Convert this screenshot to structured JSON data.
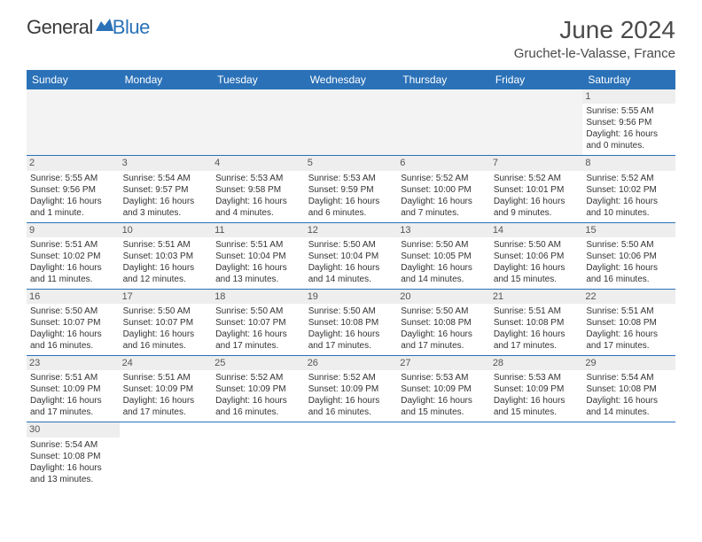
{
  "brand": {
    "part1": "General",
    "part2": "Blue"
  },
  "title": "June 2024",
  "location": "Gruchet-le-Valasse, France",
  "colors": {
    "accent": "#2a71b8",
    "text": "#333333",
    "header_bg": "#2a71b8",
    "header_fg": "#ffffff",
    "daynum_bg": "#eeeeee"
  },
  "dayNames": [
    "Sunday",
    "Monday",
    "Tuesday",
    "Wednesday",
    "Thursday",
    "Friday",
    "Saturday"
  ],
  "startOffset": 6,
  "days": [
    {
      "n": 1,
      "sr": "5:55 AM",
      "ss": "9:56 PM",
      "dl": "16 hours and 0 minutes."
    },
    {
      "n": 2,
      "sr": "5:55 AM",
      "ss": "9:56 PM",
      "dl": "16 hours and 1 minute."
    },
    {
      "n": 3,
      "sr": "5:54 AM",
      "ss": "9:57 PM",
      "dl": "16 hours and 3 minutes."
    },
    {
      "n": 4,
      "sr": "5:53 AM",
      "ss": "9:58 PM",
      "dl": "16 hours and 4 minutes."
    },
    {
      "n": 5,
      "sr": "5:53 AM",
      "ss": "9:59 PM",
      "dl": "16 hours and 6 minutes."
    },
    {
      "n": 6,
      "sr": "5:52 AM",
      "ss": "10:00 PM",
      "dl": "16 hours and 7 minutes."
    },
    {
      "n": 7,
      "sr": "5:52 AM",
      "ss": "10:01 PM",
      "dl": "16 hours and 9 minutes."
    },
    {
      "n": 8,
      "sr": "5:52 AM",
      "ss": "10:02 PM",
      "dl": "16 hours and 10 minutes."
    },
    {
      "n": 9,
      "sr": "5:51 AM",
      "ss": "10:02 PM",
      "dl": "16 hours and 11 minutes."
    },
    {
      "n": 10,
      "sr": "5:51 AM",
      "ss": "10:03 PM",
      "dl": "16 hours and 12 minutes."
    },
    {
      "n": 11,
      "sr": "5:51 AM",
      "ss": "10:04 PM",
      "dl": "16 hours and 13 minutes."
    },
    {
      "n": 12,
      "sr": "5:50 AM",
      "ss": "10:04 PM",
      "dl": "16 hours and 14 minutes."
    },
    {
      "n": 13,
      "sr": "5:50 AM",
      "ss": "10:05 PM",
      "dl": "16 hours and 14 minutes."
    },
    {
      "n": 14,
      "sr": "5:50 AM",
      "ss": "10:06 PM",
      "dl": "16 hours and 15 minutes."
    },
    {
      "n": 15,
      "sr": "5:50 AM",
      "ss": "10:06 PM",
      "dl": "16 hours and 16 minutes."
    },
    {
      "n": 16,
      "sr": "5:50 AM",
      "ss": "10:07 PM",
      "dl": "16 hours and 16 minutes."
    },
    {
      "n": 17,
      "sr": "5:50 AM",
      "ss": "10:07 PM",
      "dl": "16 hours and 16 minutes."
    },
    {
      "n": 18,
      "sr": "5:50 AM",
      "ss": "10:07 PM",
      "dl": "16 hours and 17 minutes."
    },
    {
      "n": 19,
      "sr": "5:50 AM",
      "ss": "10:08 PM",
      "dl": "16 hours and 17 minutes."
    },
    {
      "n": 20,
      "sr": "5:50 AM",
      "ss": "10:08 PM",
      "dl": "16 hours and 17 minutes."
    },
    {
      "n": 21,
      "sr": "5:51 AM",
      "ss": "10:08 PM",
      "dl": "16 hours and 17 minutes."
    },
    {
      "n": 22,
      "sr": "5:51 AM",
      "ss": "10:08 PM",
      "dl": "16 hours and 17 minutes."
    },
    {
      "n": 23,
      "sr": "5:51 AM",
      "ss": "10:09 PM",
      "dl": "16 hours and 17 minutes."
    },
    {
      "n": 24,
      "sr": "5:51 AM",
      "ss": "10:09 PM",
      "dl": "16 hours and 17 minutes."
    },
    {
      "n": 25,
      "sr": "5:52 AM",
      "ss": "10:09 PM",
      "dl": "16 hours and 16 minutes."
    },
    {
      "n": 26,
      "sr": "5:52 AM",
      "ss": "10:09 PM",
      "dl": "16 hours and 16 minutes."
    },
    {
      "n": 27,
      "sr": "5:53 AM",
      "ss": "10:09 PM",
      "dl": "16 hours and 15 minutes."
    },
    {
      "n": 28,
      "sr": "5:53 AM",
      "ss": "10:09 PM",
      "dl": "16 hours and 15 minutes."
    },
    {
      "n": 29,
      "sr": "5:54 AM",
      "ss": "10:08 PM",
      "dl": "16 hours and 14 minutes."
    },
    {
      "n": 30,
      "sr": "5:54 AM",
      "ss": "10:08 PM",
      "dl": "16 hours and 13 minutes."
    }
  ],
  "labels": {
    "sunrise": "Sunrise:",
    "sunset": "Sunset:",
    "daylight": "Daylight:"
  }
}
